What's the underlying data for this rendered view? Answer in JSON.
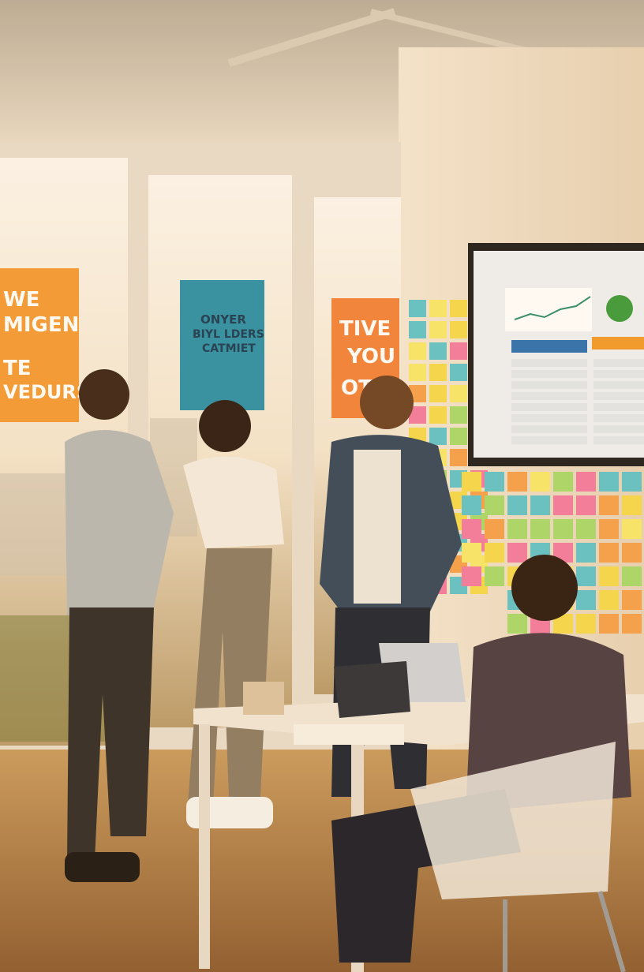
{
  "posters": [
    {
      "lines": [
        "WE",
        "MIGEN",
        "TE",
        "VEDURS"
      ]
    },
    {
      "lines": [
        "ONYER",
        "BIYL LDERS",
        "CATMIET"
      ]
    },
    {
      "lines": [
        "TIVE",
        "YOU",
        "OTE"
      ]
    }
  ]
}
